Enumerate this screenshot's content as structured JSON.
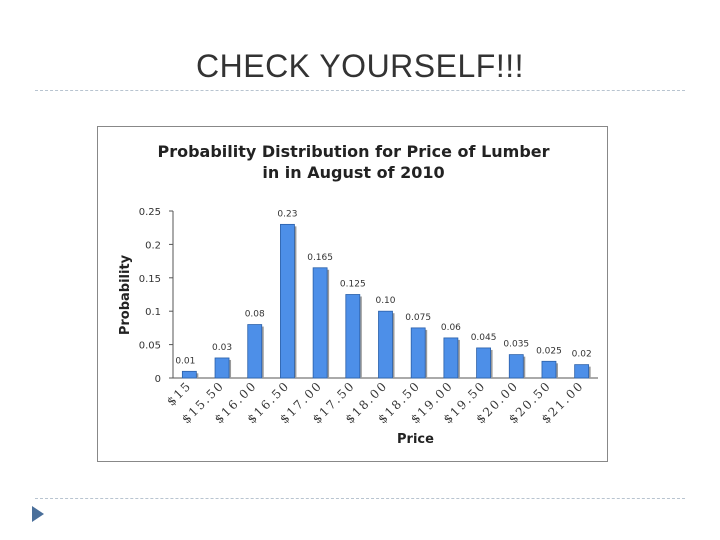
{
  "slide": {
    "title": "CHECK YOURSELF!!!"
  },
  "colors": {
    "bar": "#4d8fe8",
    "bar_stroke": "#2a5fa8",
    "bar_shadow": "#9a9a9a",
    "divider": "#b8c4d0",
    "nav_arrow": "#4a6f9a"
  },
  "nav": {
    "icon": "triangle-right-icon"
  },
  "chart_data": {
    "type": "bar",
    "title_lines": [
      "Probability Distribution for Price of Lumber",
      "in in August of 2010"
    ],
    "xlabel": "Price",
    "ylabel": "Probability",
    "ylim": [
      0,
      0.25
    ],
    "ytick_labels": [
      "0",
      "0.05",
      "0.1",
      "0.15",
      "0.2",
      "0.25"
    ],
    "categories": [
      "$15",
      "$15.50",
      "$16.00",
      "$16.50",
      "$17.00",
      "$17.50",
      "$18.00",
      "$18.50",
      "$19.00",
      "$19.50",
      "$20.00",
      "$20.50",
      "$21.00"
    ],
    "values": [
      0.01,
      0.03,
      0.08,
      0.23,
      0.165,
      0.125,
      0.1,
      0.075,
      0.06,
      0.045,
      0.035,
      0.025,
      0.02
    ],
    "data_labels": [
      "0.01",
      "0.03",
      "0.08",
      "0.23",
      "0.165",
      "0.125",
      "0.10",
      "0.075",
      "0.06",
      "0.045",
      "0.035",
      "0.025",
      "0.02"
    ],
    "grid": false,
    "legend": "none"
  }
}
